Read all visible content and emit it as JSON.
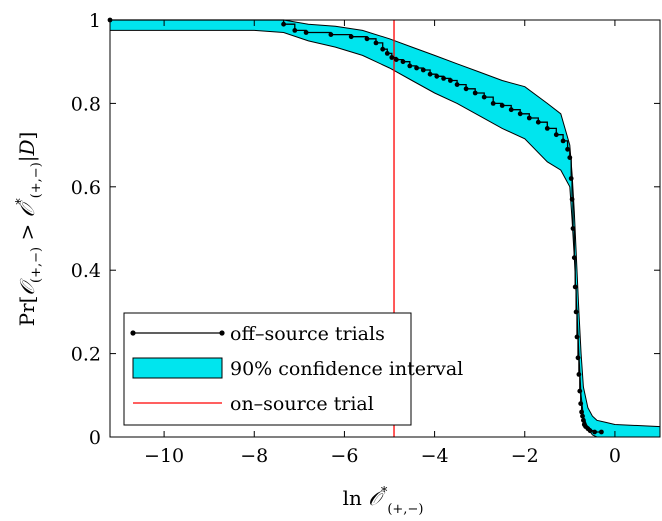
{
  "chart_data": {
    "type": "line",
    "xlabel": "ln 𝒪*(+,−)",
    "ylabel": "Pr[𝒪(+,−) > 𝒪*(+,−) | D]",
    "xlim": [
      -11.2,
      1.0
    ],
    "ylim": [
      0,
      1
    ],
    "xticks": [
      -10,
      -8,
      -6,
      -4,
      -2,
      0
    ],
    "yticks": [
      0,
      0.2,
      0.4,
      0.6,
      0.8,
      1
    ],
    "xtick_labels": [
      "−10",
      "−8",
      "−6",
      "−4",
      "−2",
      "0"
    ],
    "ytick_labels": [
      "0",
      "0.2",
      "0.4",
      "0.6",
      "0.8",
      "1"
    ],
    "grid": false,
    "legend_position": "bottom-left",
    "series": [
      {
        "name": "off–source trials",
        "color": "#000000",
        "x": [
          -11.2,
          -7.35,
          -7.1,
          -6.85,
          -6.3,
          -5.85,
          -5.5,
          -5.3,
          -5.15,
          -5.05,
          -4.95,
          -4.85,
          -4.7,
          -4.55,
          -4.4,
          -4.25,
          -4.1,
          -3.95,
          -3.8,
          -3.65,
          -3.5,
          -3.3,
          -3.1,
          -2.9,
          -2.7,
          -2.5,
          -2.3,
          -2.1,
          -1.9,
          -1.7,
          -1.5,
          -1.3,
          -1.15,
          -1.05,
          -1.0,
          -0.97,
          -0.95,
          -0.93,
          -0.9,
          -0.88,
          -0.86,
          -0.84,
          -0.82,
          -0.8,
          -0.78,
          -0.76,
          -0.74,
          -0.72,
          -0.7,
          -0.68,
          -0.65,
          -0.6,
          -0.55,
          -0.45,
          -0.3
        ],
        "y": [
          1.0,
          0.99,
          0.975,
          0.97,
          0.965,
          0.96,
          0.955,
          0.945,
          0.93,
          0.92,
          0.91,
          0.905,
          0.9,
          0.89,
          0.885,
          0.88,
          0.87,
          0.865,
          0.86,
          0.855,
          0.845,
          0.835,
          0.825,
          0.815,
          0.8,
          0.795,
          0.785,
          0.775,
          0.765,
          0.755,
          0.74,
          0.725,
          0.71,
          0.69,
          0.67,
          0.62,
          0.57,
          0.5,
          0.43,
          0.36,
          0.3,
          0.24,
          0.19,
          0.15,
          0.11,
          0.08,
          0.06,
          0.05,
          0.04,
          0.03,
          0.025,
          0.02,
          0.015,
          0.012,
          0.012
        ]
      },
      {
        "name": "90% confidence interval",
        "color": "#00e5ee",
        "x": [
          -11.2,
          -8.0,
          -7.35,
          -6.8,
          -6.2,
          -5.6,
          -5.0,
          -4.5,
          -4.0,
          -3.5,
          -3.0,
          -2.5,
          -2.0,
          -1.5,
          -1.2,
          -1.0,
          -0.95,
          -0.9,
          -0.85,
          -0.8,
          -0.75,
          -0.7,
          -0.6,
          -0.5,
          -0.4,
          -0.2,
          0.0,
          1.0
        ],
        "upper": [
          1.0,
          1.0,
          1.0,
          0.99,
          0.985,
          0.975,
          0.955,
          0.935,
          0.915,
          0.895,
          0.875,
          0.855,
          0.84,
          0.8,
          0.775,
          0.7,
          0.63,
          0.54,
          0.42,
          0.3,
          0.2,
          0.12,
          0.07,
          0.05,
          0.04,
          0.035,
          0.03,
          0.025
        ],
        "lower": [
          0.975,
          0.975,
          0.97,
          0.95,
          0.935,
          0.915,
          0.885,
          0.855,
          0.825,
          0.8,
          0.77,
          0.74,
          0.715,
          0.66,
          0.64,
          0.6,
          0.52,
          0.43,
          0.32,
          0.2,
          0.1,
          0.05,
          0.02,
          0.005,
          0.0,
          0.0,
          0.0,
          0.0
        ]
      },
      {
        "name": "on–source trial",
        "color": "#ff0000",
        "x_value": -4.9
      }
    ]
  }
}
